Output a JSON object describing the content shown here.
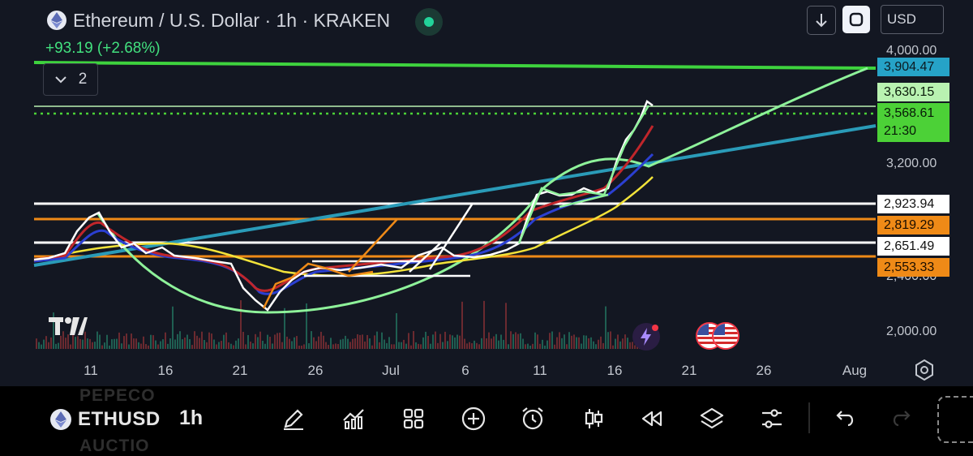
{
  "header": {
    "title": "Ethereum / U.S. Dollar · 1h · KRAKEN",
    "change": "+93.19 (+2.68%)",
    "indicator_count": "2",
    "currency": "USD"
  },
  "price_axis": {
    "labels": [
      "4,000.00",
      "3,200.00",
      "2,400.00",
      "2,000.00"
    ]
  },
  "price_tags": [
    {
      "value": "3,904.47",
      "bg": "#26a3c7",
      "fg": "#0c1b22"
    },
    {
      "value": "3,630.15",
      "bg": "#b9f2b1",
      "fg": "#0a1a0a"
    },
    {
      "value": "3,568.61",
      "countdown": "21:30",
      "bg": "#4cd137",
      "fg": "#071a07"
    },
    {
      "value": "2,923.94",
      "bg": "#ffffff",
      "fg": "#111111"
    },
    {
      "value": "2,819.29",
      "bg": "#ef8a17",
      "fg": "#1a0d00"
    },
    {
      "value": "2,651.49",
      "bg": "#ffffff",
      "fg": "#111111"
    },
    {
      "value": "2,553.33",
      "bg": "#ef8a17",
      "fg": "#1a0d00"
    }
  ],
  "time_axis": {
    "labels": [
      "11",
      "16",
      "21",
      "26",
      "Jul",
      "6",
      "11",
      "16",
      "21",
      "26",
      "Aug"
    ]
  },
  "toolbar": {
    "symbol": "ETHUSD",
    "interval": "1h",
    "ghost_top": "PEPECO",
    "ghost_bottom": "AUCTIO",
    "icons": [
      "pencil-icon",
      "indicators-icon",
      "grid-icon",
      "plus-circle-icon",
      "alarm-icon",
      "candlestick-icon",
      "replay-icon",
      "layers-icon",
      "settings-sliders-icon",
      "undo-icon",
      "redo-icon"
    ]
  },
  "colors": {
    "background": "#131722",
    "up": "#42e07e",
    "resistance_green": "#3ed33e",
    "trend_teal": "#2a9bb8",
    "support_orange": "#ef8a17",
    "white_levels": "#ffffff",
    "arc_light_green": "#8ef29a",
    "ma_yellow": "#f2e33a"
  }
}
